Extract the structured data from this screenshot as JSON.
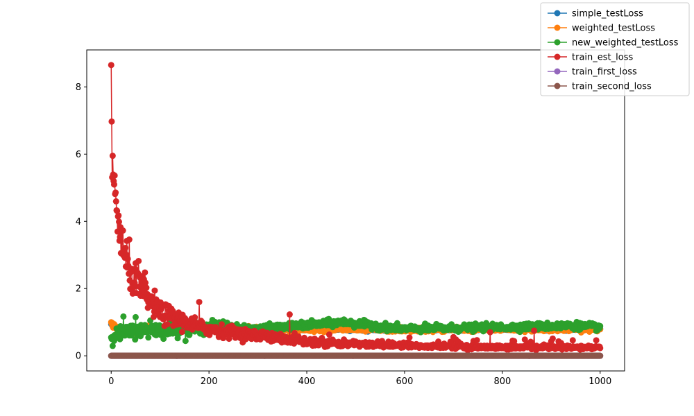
{
  "chart_data": {
    "type": "line",
    "title": "",
    "xlabel": "",
    "ylabel": "",
    "xlim": [
      -50,
      1050
    ],
    "ylim": [
      -0.45,
      9.1
    ],
    "x_ticks": [
      0,
      200,
      400,
      600,
      800,
      1000
    ],
    "y_ticks": [
      0,
      2,
      4,
      6,
      8
    ],
    "legend_position": "top-right",
    "n_points": 1001,
    "series": [
      {
        "name": "simple_testLoss",
        "color": "#1f77b4",
        "marker": "circle",
        "x_range": [
          0,
          1000
        ],
        "visible_summary": "hidden behind weighted_testLoss; approx 0.75-0.9"
      },
      {
        "name": "weighted_testLoss",
        "color": "#ff7f0e",
        "marker": "circle",
        "x_range": [
          0,
          1000
        ],
        "key_points": [
          [
            0,
            0.95
          ],
          [
            20,
            0.75
          ],
          [
            100,
            0.8
          ],
          [
            200,
            0.82
          ],
          [
            400,
            0.8
          ],
          [
            600,
            0.78
          ],
          [
            800,
            0.8
          ],
          [
            1000,
            0.8
          ]
        ]
      },
      {
        "name": "new_weighted_testLoss",
        "color": "#2ca02c",
        "marker": "circle",
        "x_range": [
          0,
          1000
        ],
        "key_points": [
          [
            0,
            0.6
          ],
          [
            50,
            0.75
          ],
          [
            200,
            0.85
          ],
          [
            300,
            0.8
          ],
          [
            475,
            1.0
          ],
          [
            600,
            0.8
          ],
          [
            800,
            0.85
          ],
          [
            950,
            0.9
          ],
          [
            1000,
            0.85
          ]
        ]
      },
      {
        "name": "train_est_loss",
        "color": "#d62728",
        "marker": "circle",
        "x_range": [
          0,
          1000
        ],
        "key_points": [
          [
            0,
            8.65
          ],
          [
            1,
            6.97
          ],
          [
            3,
            5.95
          ],
          [
            5,
            5.2
          ],
          [
            10,
            4.5
          ],
          [
            15,
            4.0
          ],
          [
            20,
            3.5
          ],
          [
            30,
            2.8
          ],
          [
            50,
            2.2
          ],
          [
            75,
            1.7
          ],
          [
            100,
            1.3
          ],
          [
            150,
            1.0
          ],
          [
            200,
            0.8
          ],
          [
            300,
            0.6
          ],
          [
            400,
            0.4
          ],
          [
            500,
            0.35
          ],
          [
            600,
            0.3
          ],
          [
            800,
            0.25
          ],
          [
            1000,
            0.25
          ]
        ],
        "outliers": [
          [
            56,
            2.82
          ],
          [
            69,
            2.48
          ],
          [
            180,
            1.6
          ],
          [
            365,
            1.23
          ],
          [
            775,
            0.7
          ],
          [
            865,
            0.75
          ]
        ]
      },
      {
        "name": "train_first_loss",
        "color": "#9467bd",
        "marker": "circle",
        "x_range": [
          0,
          1000
        ],
        "visible_summary": "hidden behind train_second_loss; ~0"
      },
      {
        "name": "train_second_loss",
        "color": "#8c564b",
        "marker": "circle",
        "x_range": [
          0,
          1000
        ],
        "constant": 0.0
      }
    ]
  }
}
